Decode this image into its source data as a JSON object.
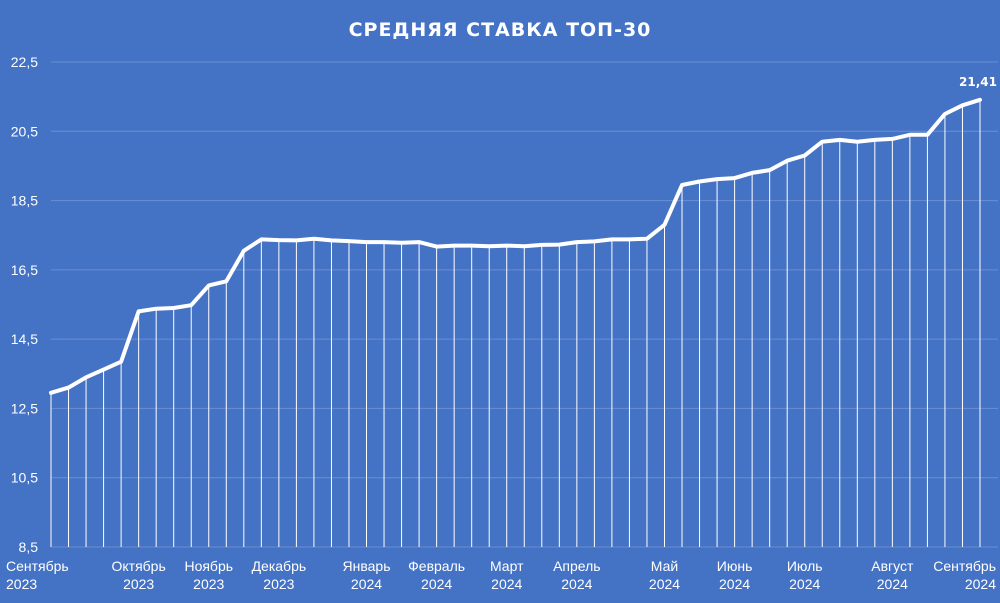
{
  "chart_data": {
    "type": "line",
    "title": "СРЕДНЯЯ СТАВКА ТОП-30",
    "xlabel": "",
    "ylabel": "",
    "ylim": [
      8.5,
      22.5
    ],
    "yticks": [
      "8,5",
      "10,5",
      "12,5",
      "14,5",
      "16,5",
      "18,5",
      "20,5",
      "22,5"
    ],
    "grid": true,
    "legend": "none",
    "drop_lines": true,
    "colors": {
      "background": "#4472c4",
      "line": "#ffffff",
      "grid": "#6a8fd2"
    },
    "x_labels": [
      {
        "month": "Сентябрь",
        "year": "2023",
        "index": 0
      },
      {
        "month": "Октябрь",
        "year": "2023",
        "index": 5
      },
      {
        "month": "Ноябрь",
        "year": "2023",
        "index": 9
      },
      {
        "month": "Декабрь",
        "year": "2023",
        "index": 13
      },
      {
        "month": "Январь",
        "year": "2024",
        "index": 18
      },
      {
        "month": "Февраль",
        "year": "2024",
        "index": 22
      },
      {
        "month": "Март",
        "year": "2024",
        "index": 26
      },
      {
        "month": "Апрель",
        "year": "2024",
        "index": 30
      },
      {
        "month": "Май",
        "year": "2024",
        "index": 35
      },
      {
        "month": "Июнь",
        "year": "2024",
        "index": 39
      },
      {
        "month": "Июль",
        "year": "2024",
        "index": 43
      },
      {
        "month": "Август",
        "year": "2024",
        "index": 48
      },
      {
        "month": "Сентябрь",
        "year": "2024",
        "index": 52
      }
    ],
    "series": [
      {
        "values": [
          12.95,
          13.1,
          13.4,
          13.62,
          13.85,
          15.3,
          15.38,
          15.4,
          15.48,
          16.05,
          16.17,
          17.05,
          17.38,
          17.36,
          17.35,
          17.4,
          17.35,
          17.33,
          17.3,
          17.3,
          17.28,
          17.3,
          17.17,
          17.2,
          17.2,
          17.18,
          17.2,
          17.18,
          17.22,
          17.23,
          17.3,
          17.32,
          17.38,
          17.38,
          17.4,
          17.8,
          18.95,
          19.05,
          19.12,
          19.15,
          19.3,
          19.38,
          19.65,
          19.8,
          20.2,
          20.25,
          20.2,
          20.25,
          20.28,
          20.4,
          20.4,
          21.0,
          21.25,
          21.41
        ]
      }
    ],
    "annotations": [
      {
        "index": 53,
        "text": "21,41"
      }
    ]
  }
}
